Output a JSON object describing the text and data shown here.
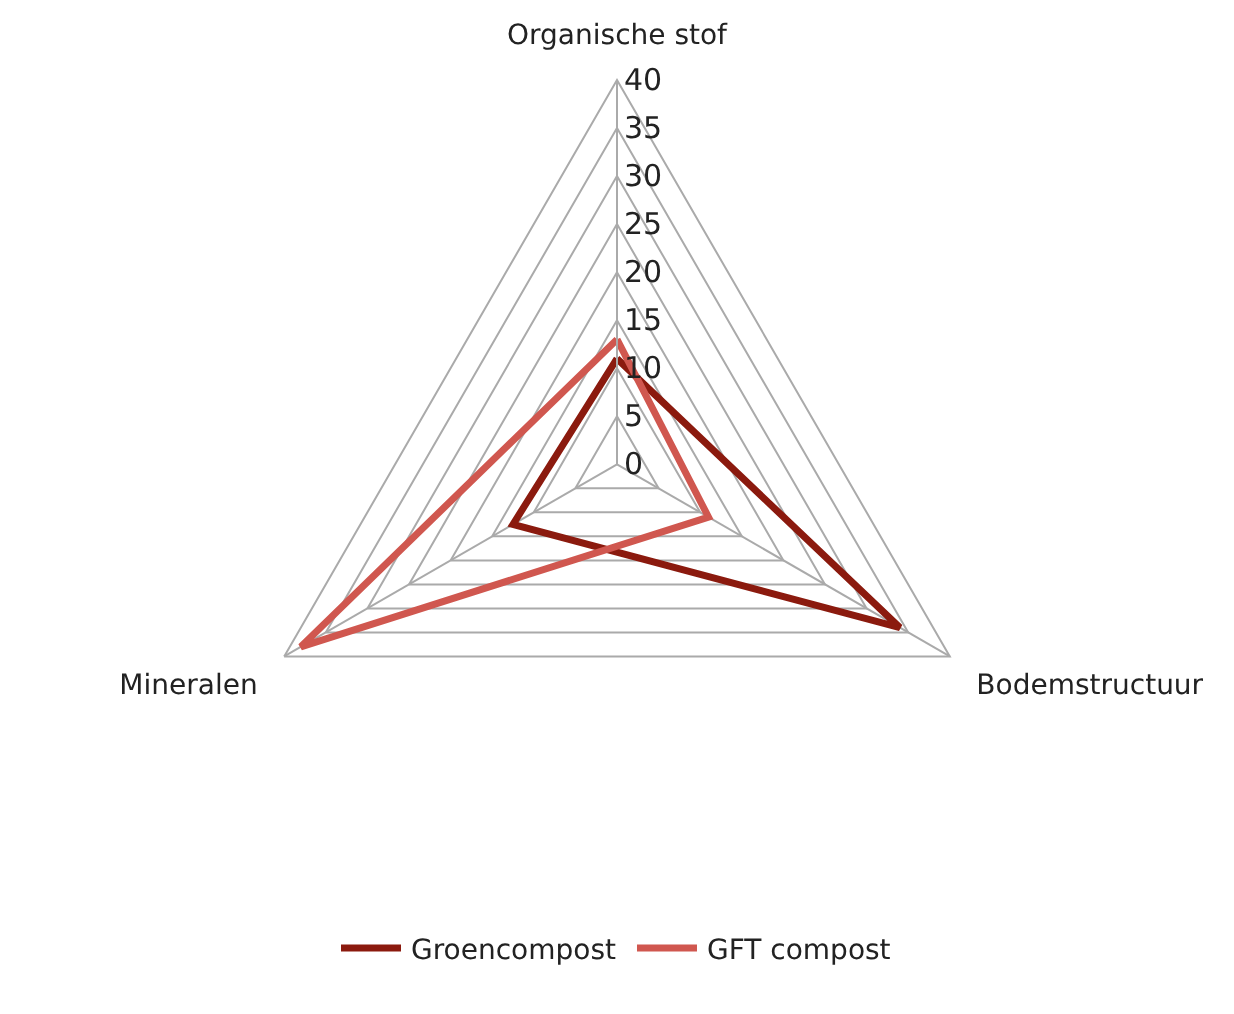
{
  "chart_data": {
    "type": "radar",
    "categories": [
      "Organische stof",
      "Bodemstructuur",
      "Mineralen"
    ],
    "series": [
      {
        "name": "Groencompost",
        "color": "#8b1a0e",
        "values": [
          11,
          34,
          12.5
        ]
      },
      {
        "name": "GFT compost",
        "color": "#d0574f",
        "values": [
          13,
          11,
          38
        ]
      }
    ],
    "ylim": [
      0,
      40
    ],
    "yticks": [
      0,
      5,
      10,
      15,
      20,
      25,
      30,
      35,
      40
    ],
    "grid": true,
    "legend": "bottom",
    "marker": "none",
    "line_style": "solid"
  }
}
